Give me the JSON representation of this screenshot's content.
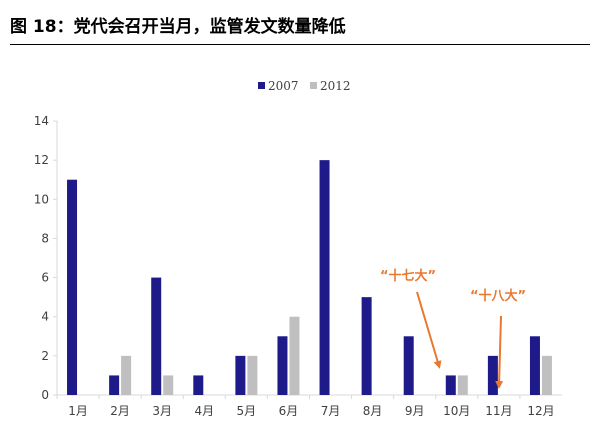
{
  "figure": {
    "title": "图 18：党代会召开当月，监管发文数量降低"
  },
  "colors": {
    "series_2007": "#1F1A8A",
    "series_2012": "#BFBFBF",
    "annotation": "#E9782F",
    "axis": "#D9D9D9"
  },
  "chart_data": {
    "type": "bar",
    "title": "",
    "xlabel": "",
    "ylabel": "",
    "categories": [
      "1月",
      "2月",
      "3月",
      "4月",
      "5月",
      "6月",
      "7月",
      "8月",
      "9月",
      "10月",
      "11月",
      "12月"
    ],
    "series": [
      {
        "name": "2007",
        "values": [
          11,
          1,
          6,
          1,
          2,
          3,
          12,
          5,
          3,
          1,
          2,
          3
        ]
      },
      {
        "name": "2012",
        "values": [
          0,
          2,
          1,
          0,
          2,
          4,
          0,
          0,
          0,
          1,
          0,
          2
        ]
      }
    ],
    "ylim": [
      0,
      14
    ],
    "yticks": [
      0,
      2,
      4,
      6,
      8,
      10,
      12,
      14
    ],
    "grid": false,
    "legend": "top-center",
    "annotations": [
      {
        "text": "“十七大”",
        "category": "10月"
      },
      {
        "text": "“十八大”",
        "category": "11月"
      }
    ]
  }
}
